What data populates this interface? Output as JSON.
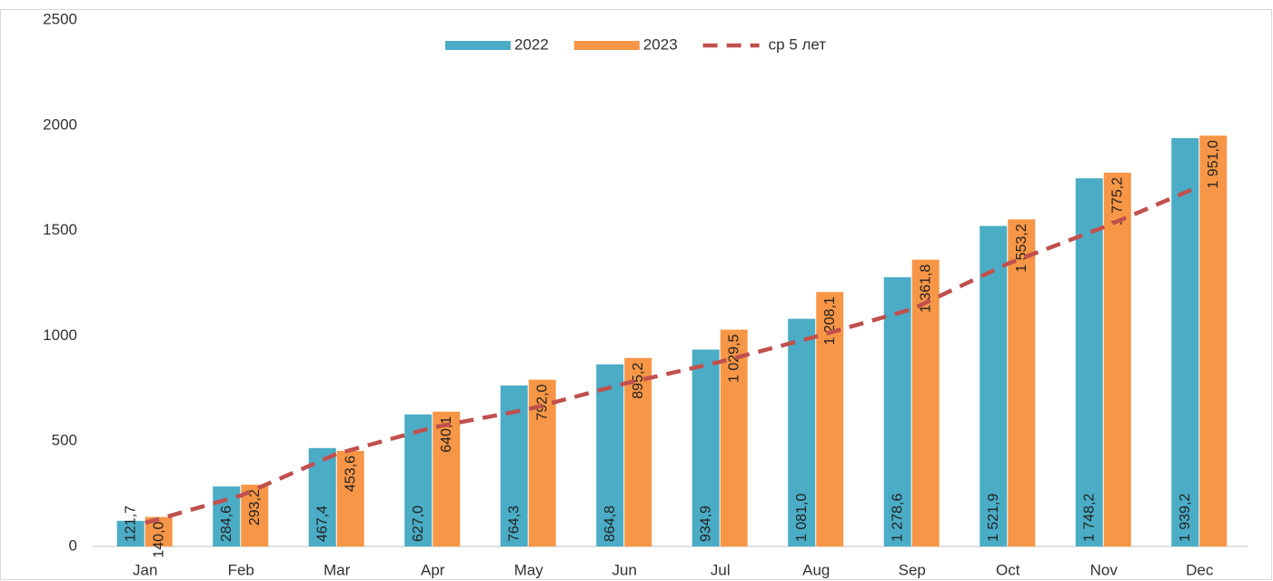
{
  "chart_data": {
    "type": "bar",
    "categories": [
      "Jan",
      "Feb",
      "Mar",
      "Apr",
      "May",
      "Jun",
      "Jul",
      "Aug",
      "Sep",
      "Oct",
      "Nov",
      "Dec"
    ],
    "series": [
      {
        "name": "2022",
        "color": "#4bacc6",
        "values": [
          121.7,
          284.6,
          467.4,
          627.0,
          764.3,
          864.8,
          934.9,
          1081.0,
          1278.6,
          1521.9,
          1748.2,
          1939.2
        ],
        "value_labels": [
          "121,7",
          "284,6",
          "467,4",
          "627,0",
          "764,3",
          "864,8",
          "934,9",
          "1 081,0",
          "1 278,6",
          "1 521,9",
          "1 748,2",
          "1 939,2"
        ]
      },
      {
        "name": "2023",
        "color": "#f79646",
        "values": [
          140.0,
          293.2,
          453.6,
          640.1,
          792.0,
          895.2,
          1029.5,
          1208.1,
          1361.8,
          1553.2,
          1775.2,
          1951.0
        ],
        "value_labels": [
          "140,0",
          "293,2",
          "453,6",
          "640,1",
          "792,0",
          "895,2",
          "1 029,5",
          "1 208,1",
          "1 361,8",
          "1 553,2",
          "1 775,2",
          "1 951,0"
        ]
      },
      {
        "name": "ср 5 лет",
        "type": "line",
        "color": "#c0504d",
        "dashed": true,
        "values": [
          112,
          242,
          440,
          565,
          652,
          773,
          877,
          997,
          1127,
          1343,
          1516,
          1710
        ]
      }
    ],
    "ylim": [
      0,
      2500
    ],
    "yticks": [
      0,
      500,
      1000,
      1500,
      2000,
      2500
    ],
    "grid": false,
    "legend": "top"
  }
}
